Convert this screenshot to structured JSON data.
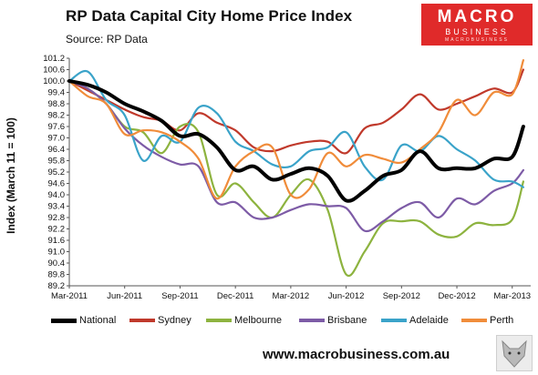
{
  "header": {
    "title": "RP Data Capital City Home Price Index",
    "subtitle": "Source: RP Data"
  },
  "logo": {
    "line1": "MACRO",
    "line2": "BUSINESS",
    "line3": "MACROBUSINESS"
  },
  "footer": {
    "url": "www.macrobusiness.com.au"
  },
  "colors": {
    "National": "#000000",
    "Sydney": "#c0392b",
    "Melbourne": "#8db33f",
    "Brisbane": "#7d5ba6",
    "Adelaide": "#3aa3c9",
    "Perth": "#f08c3a"
  },
  "chart_data": {
    "type": "line",
    "title": "RP Data Capital City Home Price Index",
    "subtitle": "Source: RP Data",
    "ylabel": "Index (March 11 = 100)",
    "xlabel": "",
    "ylim": [
      89.2,
      101.2
    ],
    "yticks": [
      "89.2",
      "89.8",
      "90.4",
      "91.0",
      "91.6",
      "92.2",
      "92.8",
      "93.4",
      "94.0",
      "94.6",
      "95.2",
      "95.8",
      "96.4",
      "97.0",
      "97.6",
      "98.2",
      "98.8",
      "99.4",
      "100.0",
      "100.6",
      "101.2"
    ],
    "xticks": [
      "Mar-2011",
      "Jun-2011",
      "Sep-2011",
      "Dec-2011",
      "Mar-2012",
      "Jun-2012",
      "Sep-2012",
      "Dec-2012",
      "Mar-2013"
    ],
    "x_range_months": [
      0,
      25
    ],
    "legend_position": "bottom",
    "grid": false,
    "series": [
      {
        "name": "National",
        "values": [
          [
            0,
            100.0
          ],
          [
            1,
            99.8
          ],
          [
            2,
            99.4
          ],
          [
            3,
            98.8
          ],
          [
            4,
            98.4
          ],
          [
            5,
            97.9
          ],
          [
            6,
            97.1
          ],
          [
            7,
            97.2
          ],
          [
            8,
            96.5
          ],
          [
            9,
            95.3
          ],
          [
            10,
            95.5
          ],
          [
            11,
            94.8
          ],
          [
            12,
            95.1
          ],
          [
            13,
            95.4
          ],
          [
            14,
            95.0
          ],
          [
            15,
            93.7
          ],
          [
            16,
            94.2
          ],
          [
            17,
            95.0
          ],
          [
            18,
            95.3
          ],
          [
            19,
            96.3
          ],
          [
            20,
            95.4
          ],
          [
            21,
            95.4
          ],
          [
            22,
            95.4
          ],
          [
            23,
            95.9
          ],
          [
            24,
            96.0
          ],
          [
            24.6,
            97.6
          ]
        ]
      },
      {
        "name": "Sydney",
        "values": [
          [
            0,
            100.0
          ],
          [
            1,
            99.5
          ],
          [
            2,
            99.0
          ],
          [
            3,
            98.5
          ],
          [
            4,
            98.1
          ],
          [
            5,
            97.9
          ],
          [
            6,
            97.4
          ],
          [
            7,
            98.3
          ],
          [
            8,
            97.8
          ],
          [
            9,
            97.4
          ],
          [
            10,
            96.5
          ],
          [
            11,
            96.3
          ],
          [
            12,
            96.6
          ],
          [
            13,
            96.8
          ],
          [
            14,
            96.8
          ],
          [
            15,
            96.2
          ],
          [
            16,
            97.5
          ],
          [
            17,
            97.8
          ],
          [
            18,
            98.5
          ],
          [
            19,
            99.3
          ],
          [
            20,
            98.5
          ],
          [
            21,
            98.8
          ],
          [
            22,
            99.2
          ],
          [
            23,
            99.6
          ],
          [
            24,
            99.4
          ],
          [
            24.6,
            100.6
          ]
        ]
      },
      {
        "name": "Melbourne",
        "values": [
          [
            0,
            100.0
          ],
          [
            1,
            99.6
          ],
          [
            2,
            98.8
          ],
          [
            3,
            97.6
          ],
          [
            4,
            97.3
          ],
          [
            5,
            96.2
          ],
          [
            6,
            97.6
          ],
          [
            7,
            97.3
          ],
          [
            8,
            94.0
          ],
          [
            9,
            94.6
          ],
          [
            10,
            93.6
          ],
          [
            11,
            92.8
          ],
          [
            12,
            94.0
          ],
          [
            13,
            94.8
          ],
          [
            14,
            93.2
          ],
          [
            15,
            89.8
          ],
          [
            16,
            91.0
          ],
          [
            17,
            92.5
          ],
          [
            18,
            92.6
          ],
          [
            19,
            92.6
          ],
          [
            20,
            91.9
          ],
          [
            21,
            91.8
          ],
          [
            22,
            92.5
          ],
          [
            23,
            92.4
          ],
          [
            24,
            92.7
          ],
          [
            24.6,
            94.7
          ]
        ]
      },
      {
        "name": "Brisbane",
        "values": [
          [
            0,
            100.0
          ],
          [
            1,
            99.6
          ],
          [
            2,
            98.8
          ],
          [
            3,
            97.5
          ],
          [
            4,
            96.6
          ],
          [
            5,
            96.0
          ],
          [
            6,
            95.6
          ],
          [
            7,
            95.5
          ],
          [
            8,
            93.6
          ],
          [
            9,
            93.6
          ],
          [
            10,
            92.8
          ],
          [
            11,
            92.8
          ],
          [
            12,
            93.2
          ],
          [
            13,
            93.5
          ],
          [
            14,
            93.4
          ],
          [
            15,
            93.3
          ],
          [
            16,
            92.1
          ],
          [
            17,
            92.6
          ],
          [
            18,
            93.3
          ],
          [
            19,
            93.6
          ],
          [
            20,
            92.8
          ],
          [
            21,
            93.8
          ],
          [
            22,
            93.5
          ],
          [
            23,
            94.2
          ],
          [
            24,
            94.6
          ],
          [
            24.6,
            95.3
          ]
        ]
      },
      {
        "name": "Adelaide",
        "values": [
          [
            0,
            100.0
          ],
          [
            1,
            100.5
          ],
          [
            2,
            99.0
          ],
          [
            3,
            98.2
          ],
          [
            4,
            95.8
          ],
          [
            5,
            97.1
          ],
          [
            6,
            96.8
          ],
          [
            7,
            98.6
          ],
          [
            8,
            98.3
          ],
          [
            9,
            96.8
          ],
          [
            10,
            96.3
          ],
          [
            11,
            95.6
          ],
          [
            12,
            95.5
          ],
          [
            13,
            96.3
          ],
          [
            14,
            96.5
          ],
          [
            15,
            97.3
          ],
          [
            16,
            95.5
          ],
          [
            17,
            94.8
          ],
          [
            18,
            96.6
          ],
          [
            19,
            96.3
          ],
          [
            20,
            97.1
          ],
          [
            21,
            96.4
          ],
          [
            22,
            95.8
          ],
          [
            23,
            94.8
          ],
          [
            24,
            94.7
          ],
          [
            24.6,
            94.4
          ]
        ]
      },
      {
        "name": "Perth",
        "values": [
          [
            0,
            100.0
          ],
          [
            1,
            99.2
          ],
          [
            2,
            98.8
          ],
          [
            3,
            97.2
          ],
          [
            4,
            97.4
          ],
          [
            5,
            97.3
          ],
          [
            6,
            96.8
          ],
          [
            7,
            95.9
          ],
          [
            8,
            93.8
          ],
          [
            9,
            95.5
          ],
          [
            10,
            96.3
          ],
          [
            11,
            96.5
          ],
          [
            12,
            94.0
          ],
          [
            13,
            94.3
          ],
          [
            14,
            96.2
          ],
          [
            15,
            95.5
          ],
          [
            16,
            96.1
          ],
          [
            17,
            95.9
          ],
          [
            18,
            95.7
          ],
          [
            19,
            96.4
          ],
          [
            20,
            97.3
          ],
          [
            21,
            99.0
          ],
          [
            22,
            98.2
          ],
          [
            23,
            99.4
          ],
          [
            24,
            99.3
          ],
          [
            24.6,
            101.1
          ]
        ]
      }
    ]
  }
}
